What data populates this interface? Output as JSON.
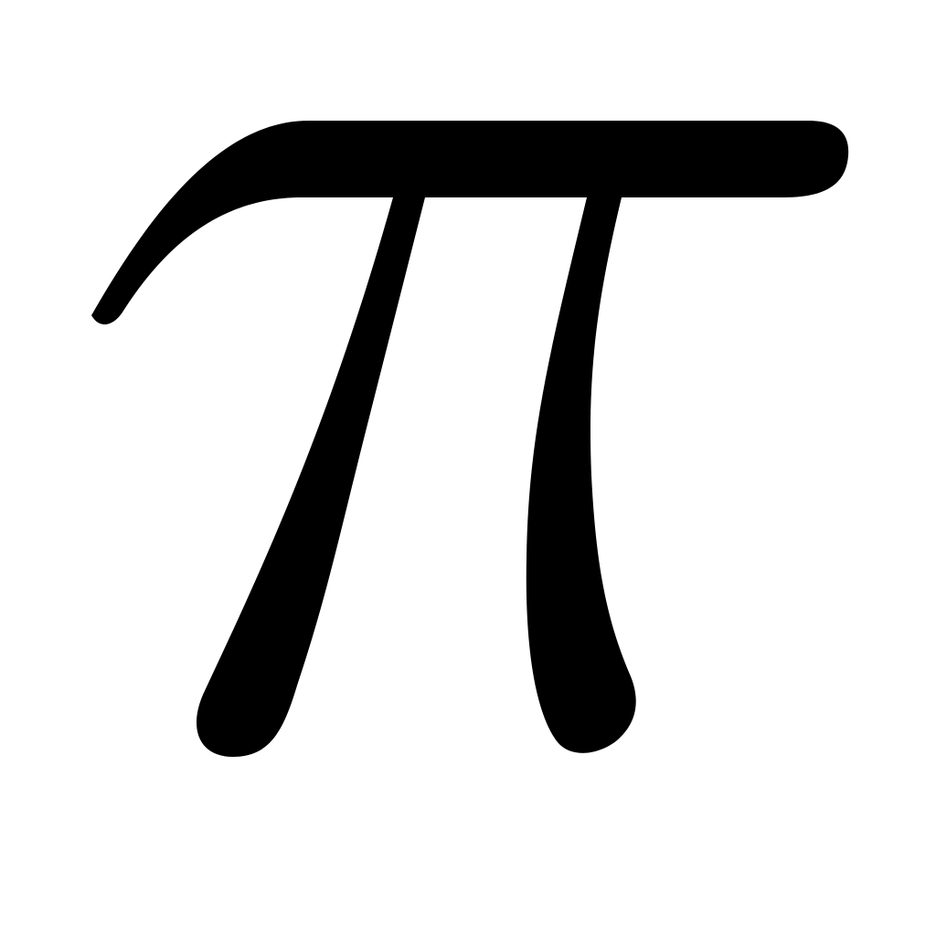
{
  "glyph": {
    "symbol": "π",
    "icon": "pi-symbol-icon",
    "fill_color": "#000000",
    "background_color": "#ffffff"
  }
}
